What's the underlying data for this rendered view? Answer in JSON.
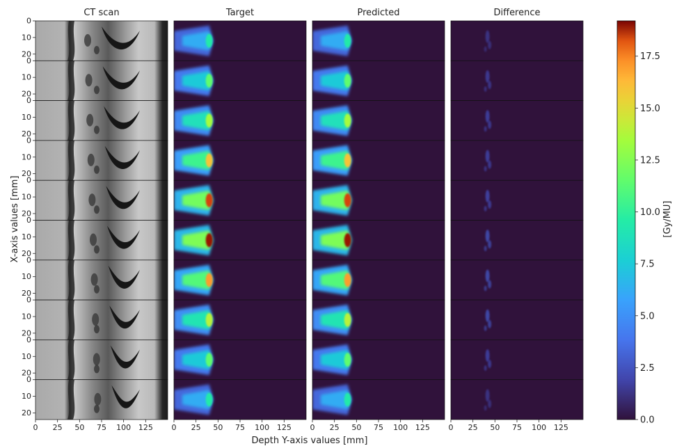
{
  "chart_data": {
    "type": "heatmap",
    "panels": [
      {
        "key": "ct",
        "title": "CT scan"
      },
      {
        "key": "target",
        "title": "Target"
      },
      {
        "key": "predicted",
        "title": "Predicted"
      },
      {
        "key": "difference",
        "title": "Difference"
      }
    ],
    "rows": 10,
    "xlabel": "Depth Y-axis values [mm]",
    "ylabel": "X-axis values [mm]",
    "x_ticks": [
      0,
      25,
      50,
      75,
      100,
      125
    ],
    "x_range": [
      0,
      150
    ],
    "y_ticks": [
      0,
      10,
      20
    ],
    "y_range": [
      0,
      24
    ],
    "colorbar": {
      "label": "[Gy/MU]",
      "ticks": [
        "0.0",
        "2.5",
        "5.0",
        "7.5",
        "10.0",
        "12.5",
        "15.0",
        "17.5"
      ],
      "range": [
        0,
        19.2
      ],
      "colormap": "turbo"
    },
    "dose_peak_depth_mm": 40,
    "row_peak_dose": [
      9.5,
      11.5,
      13.5,
      16.0,
      18.5,
      19.0,
      17.0,
      14.0,
      11.5,
      9.5
    ],
    "row_difference_max": [
      1.5,
      1.8,
      2.0,
      2.0,
      2.2,
      2.5,
      2.5,
      2.5,
      2.0,
      1.5
    ]
  }
}
